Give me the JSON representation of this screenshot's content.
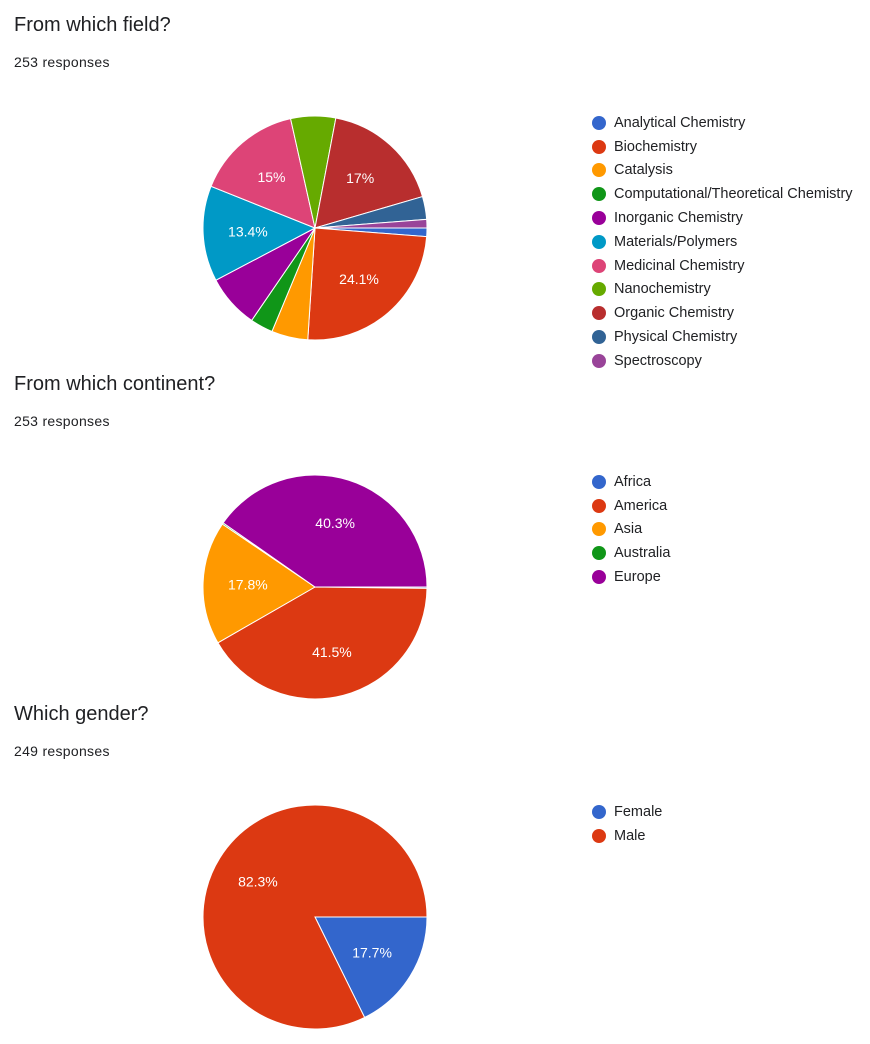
{
  "chart_data": [
    {
      "type": "pie",
      "title": "From which field?",
      "subtitle": "253 responses",
      "labels": [
        "Analytical Chemistry",
        "Biochemistry",
        "Catalysis",
        "Computational/Theoretical Chemistry",
        "Inorganic Chemistry",
        "Materials/Polymers",
        "Medicinal Chemistry",
        "Nanochemistry",
        "Organic Chemistry",
        "Physical Chemistry",
        "Spectroscopy"
      ],
      "values": [
        1.2,
        24.1,
        5.1,
        3.2,
        7.5,
        13.4,
        15,
        6.3,
        17,
        3.2,
        1.2
      ],
      "value_labels": [
        "",
        "24.1%",
        "",
        "",
        "",
        "13.4%",
        "15%",
        "",
        "17%",
        "",
        ""
      ],
      "colors": [
        "#3366cc",
        "#dc3912",
        "#ff9900",
        "#109618",
        "#990099",
        "#0099c6",
        "#dd4477",
        "#66aa00",
        "#b82e2e",
        "#316395",
        "#994499"
      ],
      "legend_position": "right"
    },
    {
      "type": "pie",
      "title": "From which continent?",
      "subtitle": "253 responses",
      "labels": [
        "Africa",
        "America",
        "Asia",
        "Australia",
        "Europe"
      ],
      "values": [
        0.2,
        41.5,
        17.8,
        0.2,
        40.3
      ],
      "value_labels": [
        "",
        "41.5%",
        "17.8%",
        "",
        "40.3%"
      ],
      "colors": [
        "#3366cc",
        "#dc3912",
        "#ff9900",
        "#109618",
        "#990099"
      ],
      "legend_position": "right"
    },
    {
      "type": "pie",
      "title": "Which gender?",
      "subtitle": "249 responses",
      "labels": [
        "Female",
        "Male"
      ],
      "values": [
        17.7,
        82.3
      ],
      "value_labels": [
        "17.7%",
        "82.3%"
      ],
      "colors": [
        "#3366cc",
        "#dc3912"
      ],
      "legend_position": "right"
    }
  ]
}
